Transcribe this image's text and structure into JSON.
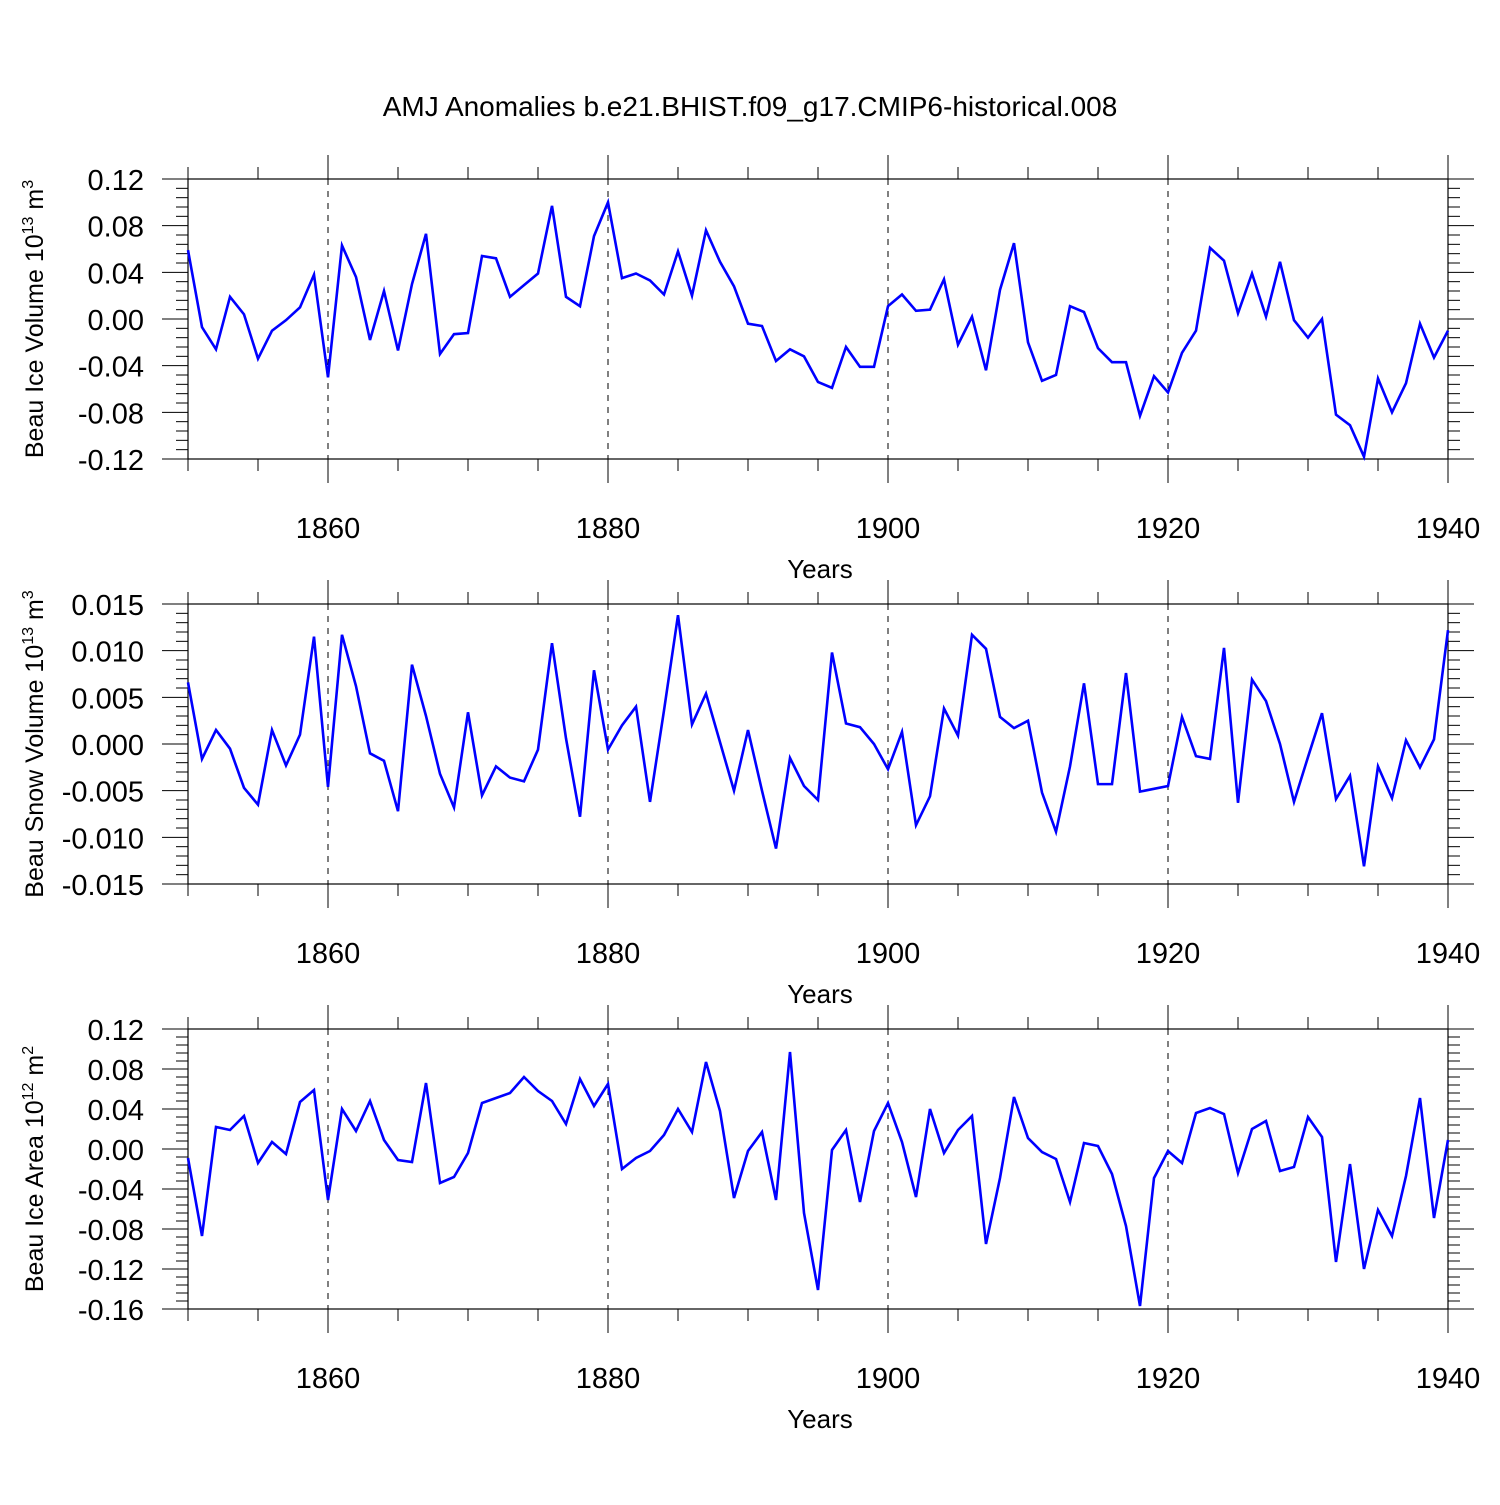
{
  "chart_data": [
    {
      "type": "line",
      "title": "AMJ Anomalies b.e21.BHIST.f09_g17.CMIP6-historical.008",
      "xlabel": "Years",
      "ylabel_main": "Beau Ice Volume 10",
      "ylabel_sup": "13",
      "ylabel_unit": " m",
      "ylabel_unit_sup": "3",
      "xlim": [
        1850,
        1940
      ],
      "ylim": [
        -0.12,
        0.12
      ],
      "xticks": [
        1860,
        1880,
        1900,
        1920,
        1940
      ],
      "xtick_labels": [
        "1860",
        "1880",
        "1900",
        "1920",
        "1940"
      ],
      "yticks": [
        0.12,
        0.08,
        0.04,
        0.0,
        -0.04,
        -0.08,
        -0.12
      ],
      "ytick_labels": [
        "0.12",
        "0.08",
        "0.04",
        "0.00",
        "-0.04",
        "-0.08",
        "-0.12"
      ],
      "x_start": 1850,
      "series": [
        {
          "name": "Beau Ice Volume",
          "color": "#0000ff",
          "values": [
            0.059,
            -0.007,
            -0.026,
            0.019,
            0.004,
            -0.034,
            -0.01,
            -0.001,
            0.01,
            0.038,
            -0.05,
            0.063,
            0.036,
            -0.018,
            0.024,
            -0.027,
            0.03,
            0.073,
            -0.03,
            -0.013,
            -0.012,
            0.054,
            0.052,
            0.019,
            0.029,
            0.039,
            0.097,
            0.019,
            0.011,
            0.071,
            0.1,
            0.035,
            0.039,
            0.033,
            0.021,
            0.058,
            0.02,
            0.076,
            0.049,
            0.028,
            -0.004,
            -0.006,
            -0.036,
            -0.026,
            -0.032,
            -0.054,
            -0.059,
            -0.024,
            -0.041,
            -0.041,
            0.011,
            0.021,
            0.007,
            0.008,
            0.034,
            -0.022,
            0.002,
            -0.044,
            0.025,
            0.065,
            -0.02,
            -0.053,
            -0.048,
            0.011,
            0.006,
            -0.025,
            -0.037,
            -0.037,
            -0.083,
            -0.049,
            -0.063,
            -0.029,
            -0.01,
            0.061,
            0.05,
            0.005,
            0.039,
            0.002,
            0.049,
            -0.001,
            -0.016,
            0.0,
            -0.082,
            -0.091,
            -0.118,
            -0.051,
            -0.08,
            -0.055,
            -0.004,
            -0.033,
            -0.01
          ]
        }
      ]
    },
    {
      "type": "line",
      "xlabel": "Years",
      "ylabel_main": "Beau Snow Volume 10",
      "ylabel_sup": "13",
      "ylabel_unit": " m",
      "ylabel_unit_sup": "3",
      "xlim": [
        1850,
        1940
      ],
      "ylim": [
        -0.015,
        0.015
      ],
      "xticks": [
        1860,
        1880,
        1900,
        1920,
        1940
      ],
      "xtick_labels": [
        "1860",
        "1880",
        "1900",
        "1920",
        "1940"
      ],
      "yticks": [
        0.015,
        0.01,
        0.005,
        0.0,
        -0.005,
        -0.01,
        -0.015
      ],
      "ytick_labels": [
        "0.015",
        "0.010",
        "0.005",
        "0.000",
        "-0.005",
        "-0.010",
        "-0.015"
      ],
      "x_start": 1850,
      "series": [
        {
          "name": "Beau Snow Volume",
          "color": "#0000ff",
          "values": [
            0.0066,
            -0.0016,
            0.0015,
            -0.0005,
            -0.0047,
            -0.0065,
            0.0015,
            -0.0023,
            0.001,
            0.0115,
            -0.0046,
            0.0117,
            0.0062,
            -0.001,
            -0.0018,
            -0.0072,
            0.0085,
            0.003,
            -0.0032,
            -0.0068,
            0.0034,
            -0.0055,
            -0.0024,
            -0.0036,
            -0.004,
            -0.0006,
            0.0108,
            0.0006,
            -0.0078,
            0.0079,
            -0.0006,
            0.002,
            0.004,
            -0.0062,
            0.0036,
            0.0138,
            0.0021,
            0.0054,
            0.0002,
            -0.005,
            0.0015,
            -0.005,
            -0.0112,
            -0.0015,
            -0.0045,
            -0.006,
            0.0098,
            0.0022,
            0.0018,
            0.0,
            -0.0027,
            0.0013,
            -0.0087,
            -0.0056,
            0.0038,
            0.0009,
            0.0117,
            0.0102,
            0.0029,
            0.0017,
            0.0025,
            -0.0052,
            -0.0094,
            -0.0024,
            0.0065,
            -0.0043,
            -0.0043,
            0.0076,
            -0.0051,
            -0.0048,
            -0.0045,
            0.0029,
            -0.0013,
            -0.0016,
            0.0103,
            -0.0063,
            0.0069,
            0.0046,
            0.0,
            -0.0062,
            -0.0014,
            0.0033,
            -0.0059,
            -0.0034,
            -0.0131,
            -0.0024,
            -0.0058,
            0.0004,
            -0.0025,
            0.0005,
            0.0122
          ]
        }
      ]
    },
    {
      "type": "line",
      "xlabel": "Years",
      "ylabel_main": "Beau Ice Area 10",
      "ylabel_sup": "12",
      "ylabel_unit": " m",
      "ylabel_unit_sup": "2",
      "xlim": [
        1850,
        1940
      ],
      "ylim": [
        -0.16,
        0.12
      ],
      "xticks": [
        1860,
        1880,
        1900,
        1920,
        1940
      ],
      "xtick_labels": [
        "1860",
        "1880",
        "1900",
        "1920",
        "1940"
      ],
      "yticks": [
        0.12,
        0.08,
        0.04,
        0.0,
        -0.04,
        -0.08,
        -0.12,
        -0.16
      ],
      "ytick_labels": [
        "0.12",
        "0.08",
        "0.04",
        "0.00",
        "-0.04",
        "-0.08",
        "-0.12",
        "-0.16"
      ],
      "x_start": 1850,
      "series": [
        {
          "name": "Beau Ice Area",
          "color": "#0000ff",
          "values": [
            -0.009,
            -0.087,
            0.022,
            0.019,
            0.033,
            -0.014,
            0.007,
            -0.005,
            0.047,
            0.059,
            -0.051,
            0.04,
            0.018,
            0.048,
            0.009,
            -0.011,
            -0.013,
            0.066,
            -0.034,
            -0.028,
            -0.004,
            0.046,
            0.051,
            0.056,
            0.072,
            0.058,
            0.048,
            0.025,
            0.07,
            0.043,
            0.065,
            -0.02,
            -0.009,
            -0.002,
            0.014,
            0.04,
            0.017,
            0.087,
            0.038,
            -0.049,
            -0.002,
            0.017,
            -0.051,
            0.097,
            -0.064,
            -0.141,
            -0.001,
            0.019,
            -0.053,
            0.018,
            0.046,
            0.007,
            -0.048,
            0.04,
            -0.004,
            0.019,
            0.033,
            -0.095,
            -0.029,
            0.052,
            0.011,
            -0.003,
            -0.01,
            -0.053,
            0.006,
            0.003,
            -0.025,
            -0.077,
            -0.157,
            -0.029,
            -0.002,
            -0.014,
            0.036,
            0.041,
            0.035,
            -0.024,
            0.02,
            0.028,
            -0.022,
            -0.018,
            0.032,
            0.012,
            -0.113,
            -0.015,
            -0.12,
            -0.061,
            -0.087,
            -0.027,
            0.051,
            -0.069,
            0.009
          ]
        }
      ]
    }
  ]
}
